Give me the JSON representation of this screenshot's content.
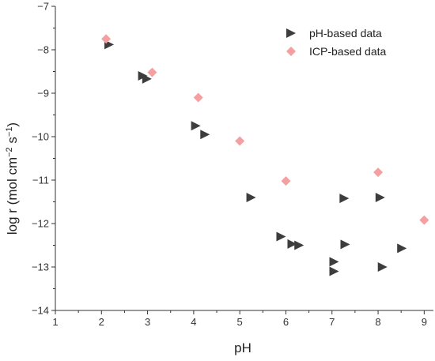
{
  "chart_data": {
    "type": "scatter",
    "title": "",
    "xlabel": "pH",
    "ylabel_parts": {
      "base": "log r (mol cm",
      "sup1": "−2",
      "mid": " s",
      "sup2": "−1",
      "end": ")"
    },
    "xlim": [
      1,
      9.2
    ],
    "ylim": [
      -14,
      -7
    ],
    "x_ticks": [
      "1",
      "2",
      "3",
      "4",
      "5",
      "6",
      "7",
      "8",
      "9"
    ],
    "y_ticks": [
      "−7",
      "−8",
      "−9",
      "−10",
      "−11",
      "−12",
      "−13",
      "−14"
    ],
    "grid": false,
    "legend_position": "top-right",
    "series": [
      {
        "name": "pH-based data",
        "marker": "triangle-right",
        "color": "#3d3d3d",
        "points": [
          {
            "x": 2.15,
            "y": -7.88
          },
          {
            "x": 2.88,
            "y": -8.6
          },
          {
            "x": 2.97,
            "y": -8.67
          },
          {
            "x": 4.03,
            "y": -9.75
          },
          {
            "x": 4.23,
            "y": -9.95
          },
          {
            "x": 5.23,
            "y": -11.4
          },
          {
            "x": 5.88,
            "y": -12.3
          },
          {
            "x": 6.12,
            "y": -12.47
          },
          {
            "x": 6.27,
            "y": -12.5
          },
          {
            "x": 7.03,
            "y": -12.88
          },
          {
            "x": 7.03,
            "y": -13.1
          },
          {
            "x": 7.25,
            "y": -11.42
          },
          {
            "x": 7.27,
            "y": -12.48
          },
          {
            "x": 8.03,
            "y": -11.4
          },
          {
            "x": 8.08,
            "y": -13.0
          },
          {
            "x": 8.5,
            "y": -12.57
          }
        ]
      },
      {
        "name": "ICP-based data",
        "marker": "diamond",
        "color": "#f4a0a0",
        "points": [
          {
            "x": 2.1,
            "y": -7.75
          },
          {
            "x": 3.1,
            "y": -8.52
          },
          {
            "x": 4.1,
            "y": -9.1
          },
          {
            "x": 5.0,
            "y": -10.1
          },
          {
            "x": 6.0,
            "y": -11.02
          },
          {
            "x": 8.0,
            "y": -10.82
          },
          {
            "x": 9.0,
            "y": -11.92
          }
        ]
      }
    ]
  }
}
